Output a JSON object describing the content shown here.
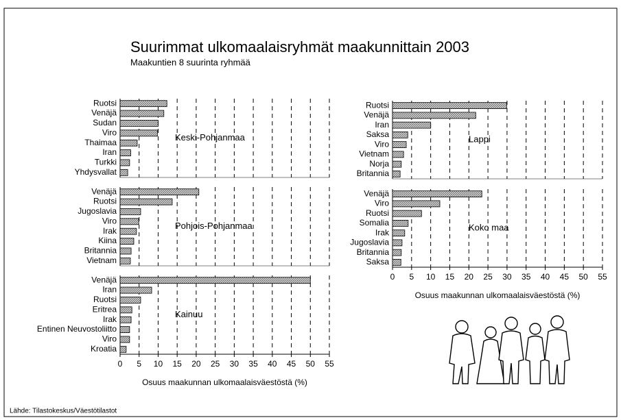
{
  "title": "Suurimmat ulkomaalaisryhmät maakunnittain 2003",
  "subtitle": "Maakuntien 8 suurinta ryhmää",
  "source": "Lähde: Tilastokeskus/Väestötilastot",
  "chart_data": [
    {
      "type": "bar",
      "orientation": "horizontal",
      "label": "Keski-Pohjanmaa",
      "color": "#b0b0b0",
      "categories": [
        "Ruotsi",
        "Venäjä",
        "Sudan",
        "Viro",
        "Thaimaa",
        "Iran",
        "Turkki",
        "Yhdysvallat"
      ],
      "values": [
        12.3,
        11.5,
        10,
        9.8,
        4.5,
        2.8,
        2.5,
        2
      ],
      "xlim": [
        0,
        55
      ],
      "xticks": [
        0,
        5,
        10,
        15,
        20,
        25,
        30,
        35,
        40,
        45,
        50,
        55
      ]
    },
    {
      "type": "bar",
      "orientation": "horizontal",
      "label": "Pohjois-Pohjanmaa",
      "color": "#b0b0b0",
      "categories": [
        "Venäjä",
        "Ruotsi",
        "Jugoslavia",
        "Viro",
        "Irak",
        "Kiina",
        "Britannia",
        "Vietnam"
      ],
      "values": [
        20.7,
        13.7,
        5.4,
        4.9,
        4.3,
        3.6,
        2.9,
        2.7
      ],
      "xlim": [
        0,
        55
      ],
      "xticks": [
        0,
        5,
        10,
        15,
        20,
        25,
        30,
        35,
        40,
        45,
        50,
        55
      ]
    },
    {
      "type": "bar",
      "orientation": "horizontal",
      "label": "Kainuu",
      "color": "#b0b0b0",
      "categories": [
        "Venäjä",
        "Iran",
        "Ruotsi",
        "Eritrea",
        "Irak",
        "Entinen Neuvostoliitto",
        "Viro",
        "Kroatia"
      ],
      "values": [
        50,
        8.3,
        5.4,
        3.1,
        2.9,
        2.5,
        2.5,
        1.6
      ],
      "xlim": [
        0,
        55
      ],
      "xticks": [
        0,
        5,
        10,
        15,
        20,
        25,
        30,
        35,
        40,
        45,
        50,
        55
      ],
      "xlabel": "Osuus maakunnan ulkomaalaisväestöstä (%)"
    },
    {
      "type": "bar",
      "orientation": "horizontal",
      "label": "Lappi",
      "color": "#b0b0b0",
      "categories": [
        "Ruotsi",
        "Venäjä",
        "Iran",
        "Saksa",
        "Viro",
        "Vietnam",
        "Norja",
        "Britannia"
      ],
      "values": [
        29.9,
        21.8,
        10,
        4,
        3.6,
        2.9,
        2.3,
        2
      ],
      "xlim": [
        0,
        55
      ],
      "xticks": [
        0,
        5,
        10,
        15,
        20,
        25,
        30,
        35,
        40,
        45,
        50,
        55
      ]
    },
    {
      "type": "bar",
      "orientation": "horizontal",
      "label": "Koko maa",
      "color": "#b0b0b0",
      "categories": [
        "Venäjä",
        "Viro",
        "Ruotsi",
        "Somalia",
        "Irak",
        "Jugoslavia",
        "Britannia",
        "Saksa"
      ],
      "values": [
        23.4,
        12.4,
        7.6,
        4.1,
        3.2,
        2.5,
        2.3,
        2.2
      ],
      "xlim": [
        0,
        55
      ],
      "xticks": [
        0,
        5,
        10,
        15,
        20,
        25,
        30,
        35,
        40,
        45,
        50,
        55
      ],
      "xlabel": "Osuus maakunnan ulkomaalaisväestöstä (%)"
    }
  ]
}
